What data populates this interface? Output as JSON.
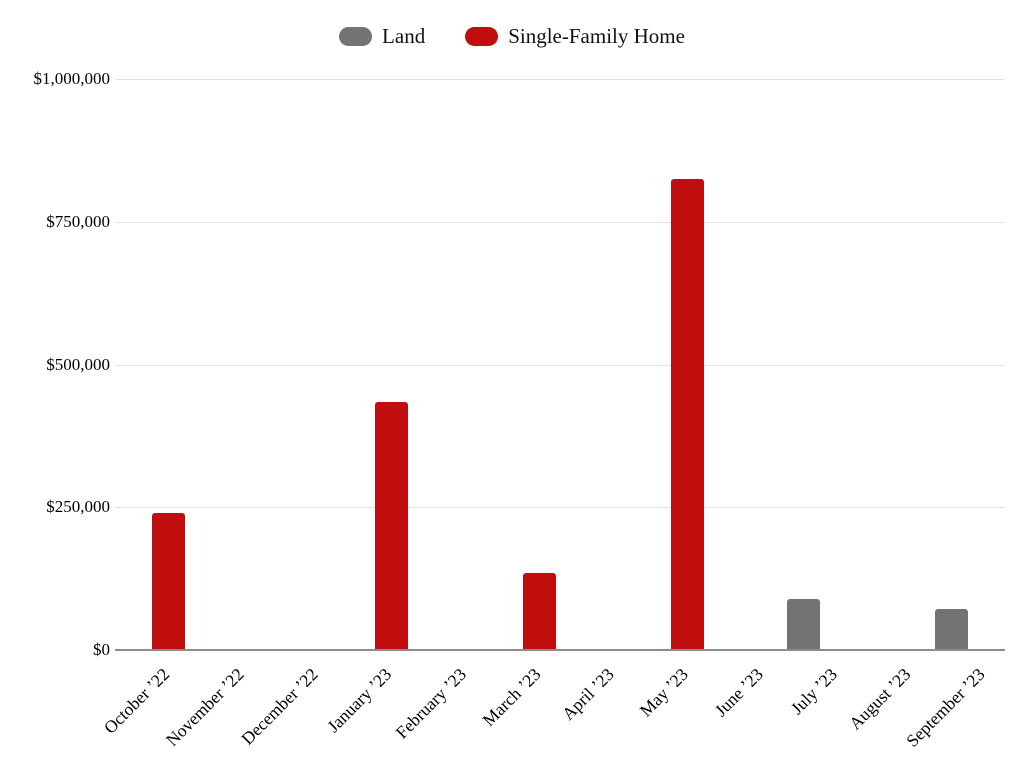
{
  "legend": {
    "items": [
      {
        "label": "Land",
        "color": "#737373"
      },
      {
        "label": "Single-Family Home",
        "color": "#c00d0d"
      }
    ]
  },
  "chart_data": {
    "type": "bar",
    "title": "",
    "xlabel": "",
    "ylabel": "",
    "categories": [
      "October ’22",
      "November ’22",
      "December ’22",
      "January ’23",
      "February ’23",
      "March ’23",
      "April ’23",
      "May ’23",
      "June ’23",
      "July ’23",
      "August ’23",
      "September ’23"
    ],
    "series": [
      {
        "name": "Land",
        "color": "#737373",
        "values": [
          0,
          0,
          0,
          0,
          0,
          0,
          0,
          0,
          0,
          90000,
          0,
          72000
        ]
      },
      {
        "name": "Single-Family Home",
        "color": "#c00d0d",
        "values": [
          240000,
          0,
          0,
          435000,
          0,
          135000,
          0,
          825000,
          0,
          0,
          0,
          0
        ]
      }
    ],
    "ylim": [
      0,
      1000000
    ],
    "ytick_values": [
      0,
      250000,
      500000,
      750000,
      1000000
    ],
    "ytick_labels": [
      "$0",
      "$250,000",
      "$500,000",
      "$750,000",
      "$1,000,000"
    ],
    "grid": true,
    "legend_position": "top"
  },
  "colors": {
    "background": "#ffffff",
    "grid_line": "#e2e2e2",
    "axis_line": "#8c8c8c",
    "text": "#000000"
  }
}
